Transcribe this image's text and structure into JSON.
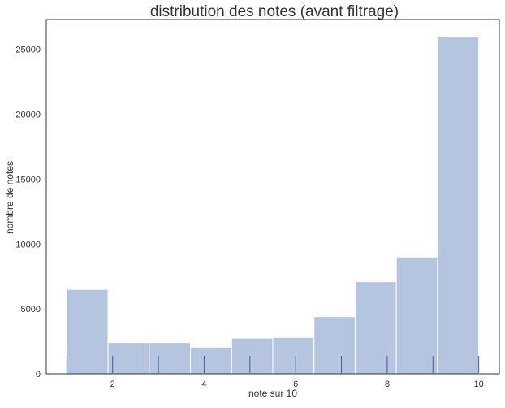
{
  "chart_data": {
    "type": "bar",
    "title": "distribution des notes (avant filtrage)",
    "xlabel": "note sur 10",
    "ylabel": "nombre de notes",
    "xlim": [
      0.55,
      10.45
    ],
    "ylim": [
      0,
      27300
    ],
    "xticks": [
      2,
      4,
      6,
      8,
      10
    ],
    "yticks": [
      0,
      5000,
      10000,
      15000,
      20000,
      25000
    ],
    "bins": [
      {
        "x0": 1.0,
        "x1": 1.9,
        "value": 6500
      },
      {
        "x0": 1.9,
        "x1": 2.8,
        "value": 2400
      },
      {
        "x0": 2.8,
        "x1": 3.7,
        "value": 2400
      },
      {
        "x0": 3.7,
        "x1": 4.6,
        "value": 2050
      },
      {
        "x0": 4.6,
        "x1": 5.5,
        "value": 2750
      },
      {
        "x0": 5.5,
        "x1": 6.4,
        "value": 2800
      },
      {
        "x0": 6.4,
        "x1": 7.3,
        "value": 4400
      },
      {
        "x0": 7.3,
        "x1": 8.2,
        "value": 7100
      },
      {
        "x0": 8.2,
        "x1": 9.1,
        "value": 9000
      },
      {
        "x0": 9.1,
        "x1": 10.0,
        "value": 26000
      }
    ],
    "rug": [
      1,
      2,
      3,
      4,
      5,
      6,
      7,
      8,
      9,
      10
    ],
    "grid": false,
    "colors": {
      "bar": "#b5c5df",
      "bar_edge": "#ffffff",
      "rug": "#3d5aa6",
      "axis": "#333333",
      "text": "#333333"
    }
  }
}
